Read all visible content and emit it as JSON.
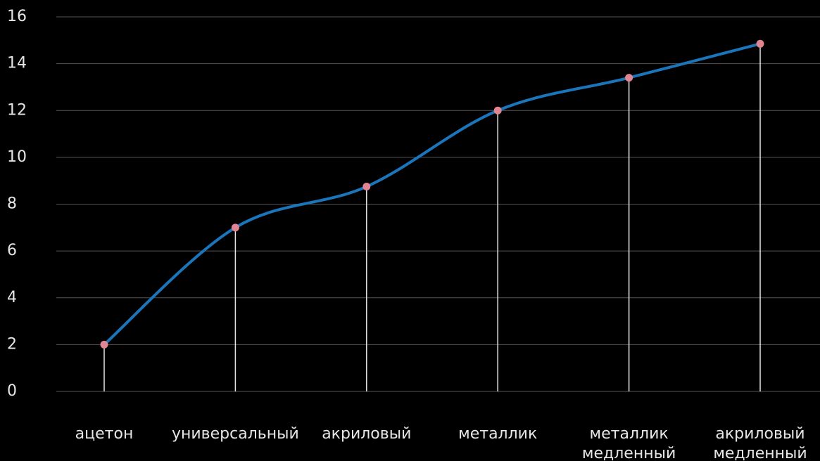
{
  "chart_data": {
    "type": "line",
    "title": "",
    "xlabel": "",
    "ylabel": "",
    "categories": [
      [
        "ацетон"
      ],
      [
        "универсальный"
      ],
      [
        "акриловый"
      ],
      [
        "металлик"
      ],
      [
        "металлик",
        "медленный"
      ],
      [
        "акриловый",
        "медленный"
      ]
    ],
    "series": [
      {
        "values": [
          2,
          7,
          8.75,
          12,
          13.4,
          14.85
        ]
      }
    ],
    "ylim": [
      0,
      16
    ],
    "yticks": [
      0,
      2,
      4,
      6,
      8,
      10,
      12,
      14,
      16
    ],
    "grid": true,
    "smooth": true,
    "drop_lines": true,
    "colors": {
      "background": "#000000",
      "grid": "#555555",
      "line": "#1b75bb",
      "marker": "#e08591",
      "drop_line": "#e6e6e6",
      "text": "#e6e6e6"
    }
  }
}
